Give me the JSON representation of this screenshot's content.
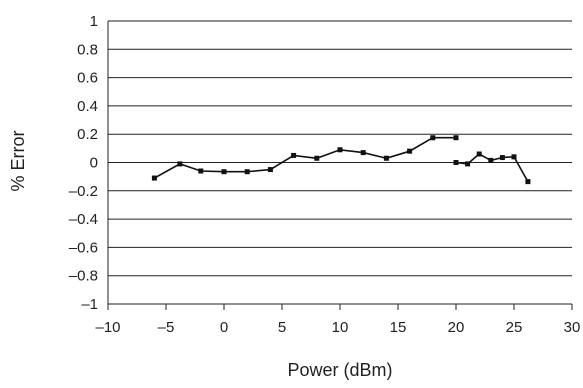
{
  "chart_data": {
    "type": "line",
    "title": "",
    "xlabel": "Power (dBm)",
    "ylabel": "% Error",
    "xlim": [
      -10,
      30
    ],
    "ylim": [
      -1,
      1
    ],
    "x_ticks": [
      -10,
      -5,
      0,
      5,
      10,
      15,
      20,
      25,
      30
    ],
    "y_ticks": [
      1,
      0.8,
      0.6,
      0.4,
      0.2,
      0,
      -0.2,
      -0.4,
      -0.6,
      -0.8,
      -1
    ],
    "x_tick_labels": [
      "–10",
      "–5",
      "0",
      "5",
      "10",
      "15",
      "20",
      "25",
      "30"
    ],
    "y_tick_labels": [
      "1",
      "0.8",
      "0.6",
      "0.4",
      "0.2",
      "0",
      "–0.2",
      "–0.4",
      "–0.6",
      "–0.8",
      "–1"
    ],
    "grid": "horizontal",
    "series": [
      {
        "x": [
          -6,
          -3.8,
          -2,
          0,
          2,
          4,
          6,
          8,
          10,
          12,
          14,
          16,
          18,
          20
        ],
        "y": [
          -0.11,
          -0.01,
          -0.06,
          -0.065,
          -0.065,
          -0.05,
          0.05,
          0.03,
          0.09,
          0.07,
          0.03,
          0.08,
          0.175,
          0.175
        ],
        "color": "#111111"
      },
      {
        "x": [
          20,
          21,
          22,
          23,
          24,
          25,
          26.2
        ],
        "y": [
          0,
          -0.01,
          0.06,
          0.015,
          0.035,
          0.04,
          -0.135
        ],
        "color": "#111111"
      }
    ]
  }
}
